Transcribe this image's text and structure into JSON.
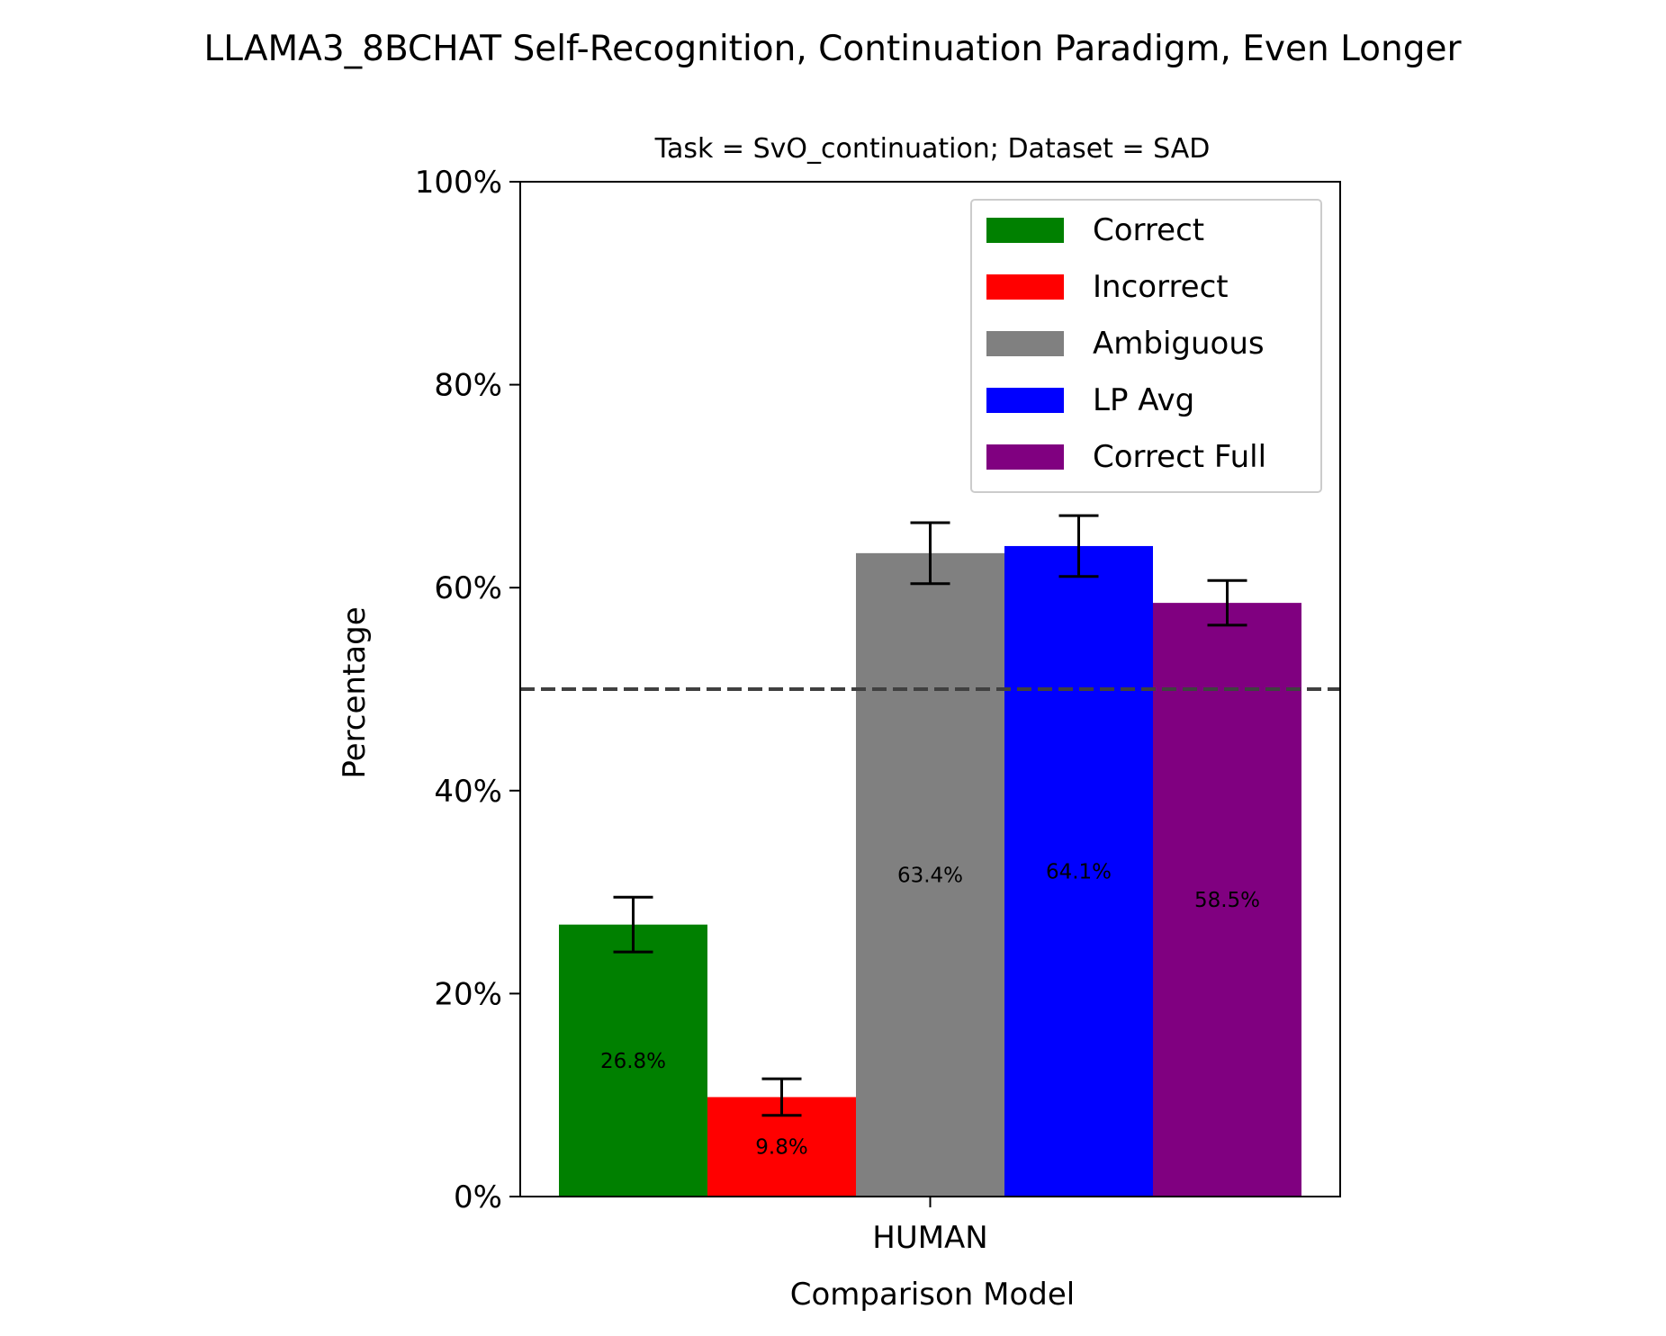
{
  "chart_data": {
    "type": "bar",
    "title": "LLAMA3_8BCHAT Self-Recognition, Continuation Paradigm, Even Longer",
    "subtitle": "Task = SvO_continuation;  Dataset = SAD",
    "xlabel": "Comparison Model",
    "ylabel": "Percentage",
    "categories": [
      "HUMAN"
    ],
    "ylim": [
      0,
      100
    ],
    "yticks": [
      0,
      20,
      40,
      60,
      80,
      100
    ],
    "ytick_labels": [
      "0%",
      "20%",
      "40%",
      "60%",
      "80%",
      "100%"
    ],
    "reference_line": {
      "y": 50,
      "style": "dashed",
      "color": "#404040"
    },
    "legend_position": "top-right",
    "series": [
      {
        "name": "Correct",
        "color": "#008000",
        "values": [
          26.8
        ],
        "error": [
          2.7
        ],
        "label": "26.8%"
      },
      {
        "name": "Incorrect",
        "color": "#ff0000",
        "values": [
          9.8
        ],
        "error": [
          1.8
        ],
        "label": "9.8%"
      },
      {
        "name": "Ambiguous",
        "color": "#808080",
        "values": [
          63.4
        ],
        "error": [
          3.0
        ],
        "label": "63.4%"
      },
      {
        "name": "LP Avg",
        "color": "#0000ff",
        "values": [
          64.1
        ],
        "error": [
          3.0
        ],
        "label": "64.1%"
      },
      {
        "name": "Correct Full",
        "color": "#800080",
        "values": [
          58.5
        ],
        "error": [
          2.2
        ],
        "label": "58.5%"
      }
    ]
  }
}
